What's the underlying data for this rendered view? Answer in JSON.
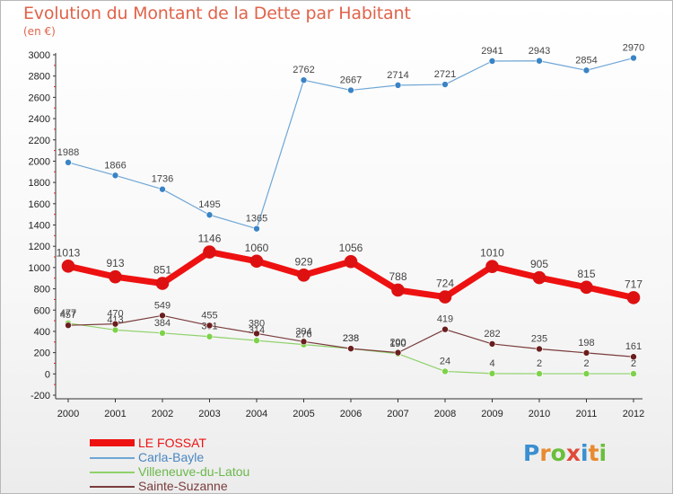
{
  "header": {
    "title": "Evolution du Montant de la Dette par Habitant",
    "subtitle": "(en €)"
  },
  "logo": {
    "text": "Proxiti",
    "colors": [
      "#3a8fd0",
      "#e88a2e",
      "#6abf3a",
      "#e04a3a",
      "#3a8fd0",
      "#e88a2e",
      "#6abf3a"
    ]
  },
  "chart_data": {
    "type": "line",
    "title": "Evolution du Montant de la Dette par Habitant",
    "subtitle": "(en €)",
    "xlabel": "",
    "ylabel": "",
    "categories": [
      "2000",
      "2001",
      "2002",
      "2003",
      "2004",
      "2005",
      "2006",
      "2007",
      "2008",
      "2009",
      "2010",
      "2011",
      "2012"
    ],
    "ylim": [
      -200,
      3000
    ],
    "yticks": [
      -200,
      0,
      200,
      400,
      600,
      800,
      1000,
      1200,
      1400,
      1600,
      1800,
      2000,
      2200,
      2400,
      2600,
      2800,
      3000
    ],
    "grid": false,
    "legend_position": "bottom-left",
    "series": [
      {
        "name": "Villeneuve-du-Latou",
        "color": "#8fd16a",
        "marker": "#7ed24a",
        "values": [
          477,
          413,
          384,
          351,
          314,
          276,
          238,
          190,
          24,
          4,
          2,
          2,
          2
        ]
      },
      {
        "name": "Sainte-Suzanne",
        "color": "#7a3b3b",
        "marker": "#6a1e1e",
        "values": [
          457,
          470,
          549,
          455,
          380,
          304,
          238,
          200,
          419,
          282,
          235,
          198,
          161
        ]
      },
      {
        "name": "Carla-Bayle",
        "color": "#6fa6d6",
        "marker": "#3a84c5",
        "values": [
          1988,
          1866,
          1736,
          1495,
          1365,
          2762,
          2667,
          2714,
          2721,
          2941,
          2943,
          2854,
          2970
        ]
      },
      {
        "name": "LE FOSSAT",
        "color": "#ee1111",
        "marker": "#dd1111",
        "values": [
          1013,
          913,
          851,
          1146,
          1060,
          929,
          1056,
          788,
          724,
          1010,
          905,
          815,
          717
        ]
      }
    ],
    "data_labels": {
      "Villeneuve-du-Latou": [
        "477",
        "413",
        "384",
        "351",
        "314",
        "276",
        "238",
        "190",
        "24",
        "4",
        "2",
        "2",
        "2"
      ],
      "Sainte-Suzanne": [
        "457",
        "470",
        "549",
        "455",
        "380",
        "304",
        "238",
        "200",
        "419",
        "282",
        "235",
        "198",
        "161"
      ],
      "Carla-Bayle": [
        "1988",
        "1866",
        "1736",
        "1495",
        "1365",
        "2762",
        "2667",
        "2714",
        "2721",
        "2941",
        "2943",
        "2854",
        "2970"
      ],
      "LE FOSSAT": [
        "1013",
        "913",
        "851",
        "1146",
        "1060",
        "929",
        "1056",
        "788",
        "724",
        "1010",
        "905",
        "815",
        "717"
      ]
    }
  },
  "legend": {
    "items": [
      {
        "label": "LE FOSSAT",
        "color": "#ee1111"
      },
      {
        "label": "Carla-Bayle",
        "color": "#6fa6d6"
      },
      {
        "label": "Villeneuve-du-Latou",
        "color": "#8fd16a"
      },
      {
        "label": "Sainte-Suzanne",
        "color": "#7a3b3b"
      }
    ]
  }
}
